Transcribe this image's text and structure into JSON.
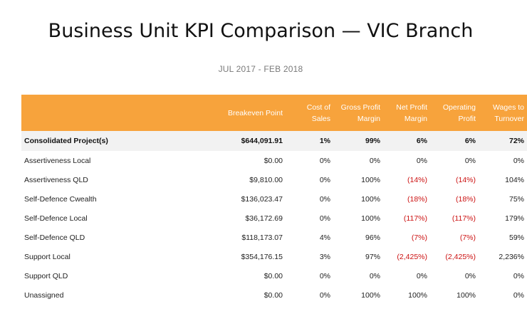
{
  "title": "Business Unit KPI Comparison — VIC Branch",
  "subtitle": "JUL 2017 - FEB 2018",
  "table": {
    "headers": [
      "",
      "Breakeven Point",
      "Cost of Sales",
      "Gross Profit Margin",
      "Net Profit Margin",
      "Operating Profit",
      "Wages to Turnover"
    ],
    "consolidated": {
      "name": "Consolidated Project(s)",
      "cells": [
        "$644,091.91",
        "1%",
        "99%",
        "6%",
        "6%",
        "72%"
      ]
    },
    "rows": [
      {
        "name": "Assertiveness Local",
        "cells": [
          "$0.00",
          "0%",
          "0%",
          "0%",
          "0%",
          "0%"
        ]
      },
      {
        "name": "Assertiveness QLD",
        "cells": [
          "$9,810.00",
          "0%",
          "100%",
          "(14%)",
          "(14%)",
          "104%"
        ]
      },
      {
        "name": "Self-Defence Cwealth",
        "cells": [
          "$136,023.47",
          "0%",
          "100%",
          "(18%)",
          "(18%)",
          "75%"
        ]
      },
      {
        "name": "Self-Defence Local",
        "cells": [
          "$36,172.69",
          "0%",
          "100%",
          "(117%)",
          "(117%)",
          "179%"
        ]
      },
      {
        "name": "Self-Defence QLD",
        "cells": [
          "$118,173.07",
          "4%",
          "96%",
          "(7%)",
          "(7%)",
          "59%"
        ]
      },
      {
        "name": "Support Local",
        "cells": [
          "$354,176.15",
          "3%",
          "97%",
          "(2,425%)",
          "(2,425%)",
          "2,236%"
        ]
      },
      {
        "name": "Support QLD",
        "cells": [
          "$0.00",
          "0%",
          "0%",
          "0%",
          "0%",
          "0%"
        ]
      },
      {
        "name": "Unassigned",
        "cells": [
          "$0.00",
          "0%",
          "100%",
          "100%",
          "100%",
          "0%"
        ]
      }
    ]
  },
  "colors": {
    "header_bg": "#f7a33c",
    "negative": "#cc1111",
    "consolidated_bg": "#f2f2f2"
  }
}
